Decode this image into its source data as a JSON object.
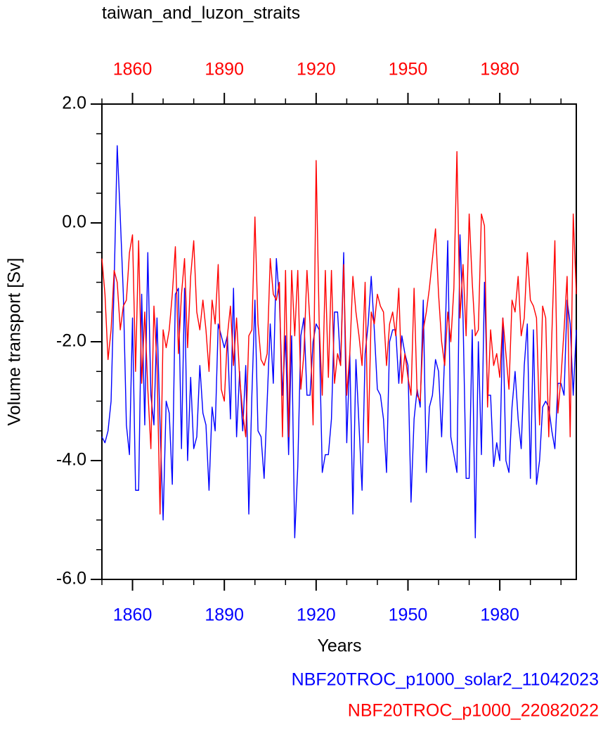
{
  "chart_data": {
    "type": "line",
    "title": "taiwan_and_luzon_straits",
    "x_label": "Years",
    "y_label": "Volume transport [Sv]",
    "x": [
      1850,
      1851,
      1852,
      1853,
      1854,
      1855,
      1856,
      1857,
      1858,
      1859,
      1860,
      1861,
      1862,
      1863,
      1864,
      1865,
      1866,
      1867,
      1868,
      1869,
      1870,
      1871,
      1872,
      1873,
      1874,
      1875,
      1876,
      1877,
      1878,
      1879,
      1880,
      1881,
      1882,
      1883,
      1884,
      1885,
      1886,
      1887,
      1888,
      1889,
      1890,
      1891,
      1892,
      1893,
      1894,
      1895,
      1896,
      1897,
      1898,
      1899,
      1900,
      1901,
      1902,
      1903,
      1904,
      1905,
      1906,
      1907,
      1908,
      1909,
      1910,
      1911,
      1912,
      1913,
      1914,
      1915,
      1916,
      1917,
      1918,
      1919,
      1920,
      1921,
      1922,
      1923,
      1924,
      1925,
      1926,
      1927,
      1928,
      1929,
      1930,
      1931,
      1932,
      1933,
      1934,
      1935,
      1936,
      1937,
      1938,
      1939,
      1940,
      1941,
      1942,
      1943,
      1944,
      1945,
      1946,
      1947,
      1948,
      1949,
      1950,
      1951,
      1952,
      1953,
      1954,
      1955,
      1956,
      1957,
      1958,
      1959,
      1960,
      1961,
      1962,
      1963,
      1964,
      1965,
      1966,
      1967,
      1968,
      1969,
      1970,
      1971,
      1972,
      1973,
      1974,
      1975,
      1976,
      1977,
      1978,
      1979,
      1980,
      1981,
      1982,
      1983,
      1984,
      1985,
      1986,
      1987,
      1988,
      1989,
      1990,
      1991,
      1992,
      1993,
      1994,
      1995,
      1996,
      1997,
      1998,
      1999,
      2000,
      2001,
      2002,
      2003,
      2004,
      2005
    ],
    "series": [
      {
        "name": "NBF20TROC_p1000_solar2_11042023",
        "color": "#0000ff",
        "axis": "x",
        "values": [
          -3.6,
          -3.7,
          -3.5,
          -3.0,
          -1.0,
          1.3,
          0.1,
          -1.2,
          -3.4,
          -3.9,
          -1.6,
          -4.5,
          -4.5,
          -1.2,
          -3.4,
          -0.5,
          -2.9,
          -3.4,
          -1.6,
          -3.4,
          -5.0,
          -3.0,
          -3.2,
          -4.4,
          -1.2,
          -1.1,
          -3.8,
          -1.1,
          -4.0,
          -2.6,
          -3.8,
          -3.6,
          -2.4,
          -3.2,
          -3.4,
          -4.5,
          -3.1,
          -3.5,
          -1.7,
          -1.9,
          -2.1,
          -1.9,
          -3.3,
          -1.1,
          -3.6,
          -2.5,
          -3.5,
          -2.4,
          -4.9,
          -2.9,
          -1.3,
          -3.5,
          -3.6,
          -4.3,
          -3.0,
          -1.7,
          -2.7,
          -0.6,
          -1.3,
          -2.9,
          -1.9,
          -3.9,
          -1.9,
          -5.3,
          -4.1,
          -1.9,
          -1.6,
          -2.9,
          -2.9,
          -2.0,
          -1.7,
          -1.8,
          -4.2,
          -3.9,
          -3.9,
          -3.3,
          -1.5,
          -1.5,
          -2.4,
          -0.5,
          -3.7,
          -2.2,
          -4.9,
          -2.3,
          -3.4,
          -4.5,
          -2.2,
          -1.7,
          -0.9,
          -1.8,
          -2.8,
          -2.9,
          -3.3,
          -4.2,
          -2.0,
          -1.8,
          -1.8,
          -2.7,
          -1.9,
          -2.2,
          -2.4,
          -4.7,
          -3.3,
          -2.8,
          -3.1,
          -1.3,
          -4.2,
          -3.1,
          -2.9,
          -2.3,
          -2.5,
          -3.6,
          -2.2,
          -0.3,
          -3.6,
          -3.9,
          -4.2,
          -0.2,
          -1.6,
          -4.3,
          -4.3,
          -1.8,
          -5.3,
          -2.0,
          -3.9,
          -1.0,
          -2.9,
          -2.9,
          -4.1,
          -3.7,
          -4.0,
          -1.6,
          -4.0,
          -4.2,
          -3.1,
          -2.5,
          -3.3,
          -3.8,
          -2.4,
          -1.7,
          -4.3,
          -1.8,
          -4.4,
          -4.0,
          -3.1,
          -3.0,
          -3.1,
          -3.5,
          -3.8,
          -2.7,
          -2.7,
          -2.9,
          -1.3,
          -1.7,
          -2.9,
          -1.8
        ]
      },
      {
        "name": "NBF20TROC_p1000_22082022",
        "color": "#ff0000",
        "axis": "x2",
        "values": [
          -0.6,
          -1.2,
          -2.3,
          -1.8,
          -0.8,
          -1.0,
          -1.8,
          -1.4,
          -1.3,
          -0.5,
          -0.2,
          -2.5,
          -0.3,
          -2.7,
          -1.5,
          -2.8,
          -3.8,
          -1.4,
          -2.4,
          -4.9,
          -1.8,
          -2.1,
          -1.8,
          -1.2,
          -0.4,
          -2.2,
          -1.2,
          -0.6,
          -2.1,
          -0.9,
          -0.3,
          -1.5,
          -1.8,
          -1.3,
          -1.8,
          -2.5,
          -1.3,
          -1.7,
          -0.7,
          -2.8,
          -3.0,
          -1.9,
          -1.4,
          -2.4,
          -1.6,
          -2.6,
          -3.2,
          -3.6,
          -1.9,
          -1.8,
          0.1,
          -1.7,
          -2.3,
          -2.4,
          -2.2,
          -0.6,
          -1.2,
          -1.3,
          -1.0,
          -3.6,
          -0.8,
          -3.6,
          -0.8,
          -1.9,
          -0.8,
          -2.8,
          -2.2,
          -0.8,
          -1.7,
          -3.4,
          1.05,
          -1.7,
          -2.9,
          -0.8,
          -2.6,
          -0.8,
          -2.7,
          -2.2,
          -2.4,
          -0.7,
          -2.9,
          -2.2,
          -0.9,
          -1.5,
          -1.9,
          -2.4,
          -1.0,
          -3.7,
          -1.5,
          -1.7,
          -1.2,
          -1.4,
          -1.5,
          -2.4,
          -1.7,
          -1.5,
          -1.9,
          -1.1,
          -2.7,
          -2.2,
          -2.6,
          -2.9,
          -1.1,
          -2.9,
          -3.0,
          -1.8,
          -1.5,
          -1.1,
          -0.6,
          -0.1,
          -1.2,
          -2.0,
          -2.4,
          -1.5,
          -2.0,
          -1.1,
          1.2,
          -1.6,
          -0.7,
          -1.9,
          0.15,
          -1.0,
          -1.9,
          -1.8,
          0.15,
          -0.05,
          -3.1,
          -1.8,
          -2.4,
          -2.2,
          -2.6,
          -1.6,
          -2.2,
          -2.8,
          -1.3,
          -1.5,
          -0.9,
          -1.9,
          -1.6,
          -0.5,
          -1.3,
          -1.4,
          -1.6,
          -3.4,
          -1.4,
          -1.6,
          -3.6,
          -1.9,
          -0.3,
          -3.2,
          -2.6,
          -1.8,
          -0.9,
          -3.6,
          0.15,
          -1.2
        ]
      }
    ],
    "xlim": [
      1850,
      2005
    ],
    "xticks": [
      1860,
      1890,
      1920,
      1950,
      1980
    ],
    "x2ticks": [
      1860,
      1890,
      1920,
      1950,
      1980
    ],
    "x_minor_ticks": [
      1850,
      1870,
      1880,
      1900,
      1910,
      1930,
      1940,
      1960,
      1970,
      1990,
      2000
    ],
    "ylim": [
      -6,
      2
    ],
    "yticks": [
      {
        "value": 2,
        "label": "2.0"
      },
      {
        "value": 0,
        "label": "0.0"
      },
      {
        "value": -2,
        "label": "-2.0"
      },
      {
        "value": -4,
        "label": "-4.0"
      },
      {
        "value": -6,
        "label": "-6.0"
      }
    ],
    "y_minor_ticks": [
      1.5,
      1,
      0.5,
      -0.5,
      -1,
      -1.5,
      -2.5,
      -3,
      -3.5,
      -4.5,
      -5,
      -5.5
    ],
    "xaxis_color": "#0000ff",
    "x2axis_color": "#ff0000",
    "grid": false
  }
}
